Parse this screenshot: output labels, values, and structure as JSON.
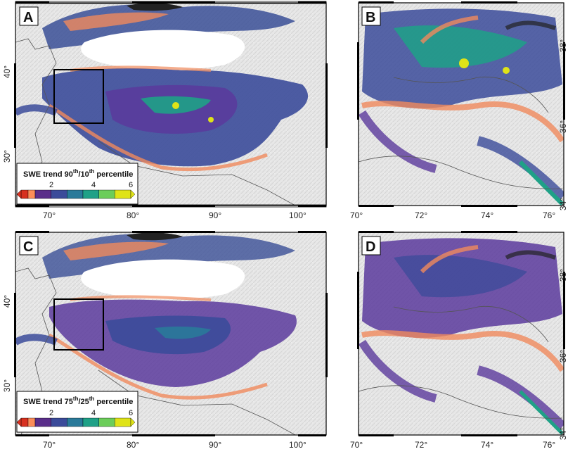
{
  "panels": [
    {
      "label": "A",
      "x_ticks": [
        "70°",
        "80°",
        "90°",
        "100°"
      ],
      "y_ticks": [
        "40°",
        "30°"
      ],
      "colorbar": {
        "title_parts": [
          "SWE trend 90",
          "th",
          "/10",
          "th",
          " percentile"
        ],
        "ticks": [
          "2",
          "4",
          "6"
        ]
      }
    },
    {
      "label": "B",
      "x_ticks": [
        "70°",
        "72°",
        "74°",
        "76°"
      ],
      "y_ticks": [
        "38°",
        "36°",
        "34°"
      ]
    },
    {
      "label": "C",
      "x_ticks": [
        "70°",
        "80°",
        "90°",
        "100°"
      ],
      "y_ticks": [
        "40°",
        "30°"
      ],
      "colorbar": {
        "title_parts": [
          "SWE trend 75",
          "th",
          "/25",
          "th",
          " percentile"
        ],
        "ticks": [
          "2",
          "4",
          "6"
        ]
      }
    },
    {
      "label": "D",
      "x_ticks": [
        "70°",
        "72°",
        "74°",
        "76°"
      ],
      "y_ticks": [
        "38°",
        "36°",
        "34°"
      ]
    }
  ],
  "colors": {
    "colorbar_stops": [
      "#d7301f",
      "#fc8d59",
      "#5a2e8a",
      "#3b4b9a",
      "#2a7a9a",
      "#1fa187",
      "#6ccd5a",
      "#dfe318"
    ],
    "background_relief": "#e8e8e8",
    "snow_free": "#ffffff",
    "negative_trend": "#f08a5d",
    "low_trend": "#5b3a9c",
    "mid_trend": "#3a5a9a",
    "high_trend": "#1fa187",
    "top_trend": "#dfe318"
  }
}
